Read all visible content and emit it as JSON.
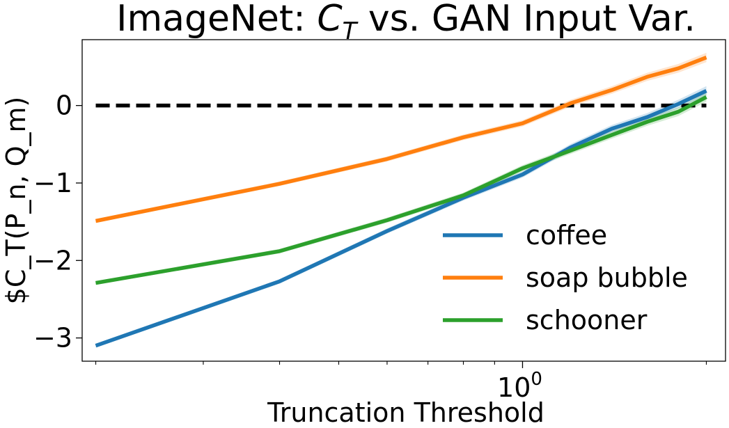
{
  "chart_data": {
    "type": "line",
    "title": {
      "prefix": "ImageNet: ",
      "symbol": "C",
      "subscript": "T",
      "suffix": " vs. GAN Input Var."
    },
    "xlabel": "Truncation Threshold",
    "ylabel": "$C_T(P_n, Q_m)",
    "x_scale": "log",
    "xlim": [
      0.19,
      2.15
    ],
    "ylim": [
      -3.3,
      0.85
    ],
    "x_ticks": [
      {
        "value": 1.0,
        "base": "10",
        "exponent": "0"
      }
    ],
    "y_ticks": [
      {
        "value": 0,
        "label": "0"
      },
      {
        "value": -1,
        "label": "−1"
      },
      {
        "value": -2,
        "label": "−2"
      },
      {
        "value": -3,
        "label": "−3"
      }
    ],
    "grid": false,
    "legend_position": "lower-right",
    "reference_line": {
      "y": 0,
      "color": "#000000",
      "style": "dashed"
    },
    "x": [
      0.2,
      0.4,
      0.6,
      0.8,
      1.0,
      1.2,
      1.4,
      1.6,
      1.8,
      2.0
    ],
    "series": [
      {
        "name": "coffee",
        "color": "#1f77b4",
        "values": [
          -3.1,
          -2.27,
          -1.62,
          -1.19,
          -0.89,
          -0.54,
          -0.3,
          -0.15,
          0.02,
          0.19
        ]
      },
      {
        "name": "soap bubble",
        "color": "#ff7f0e",
        "values": [
          -1.49,
          -1.01,
          -0.69,
          -0.41,
          -0.23,
          0.03,
          0.2,
          0.37,
          0.48,
          0.62
        ]
      },
      {
        "name": "schooner",
        "color": "#2ca02c",
        "values": [
          -2.29,
          -1.88,
          -1.48,
          -1.16,
          -0.81,
          -0.58,
          -0.38,
          -0.21,
          -0.08,
          0.11
        ]
      }
    ]
  }
}
